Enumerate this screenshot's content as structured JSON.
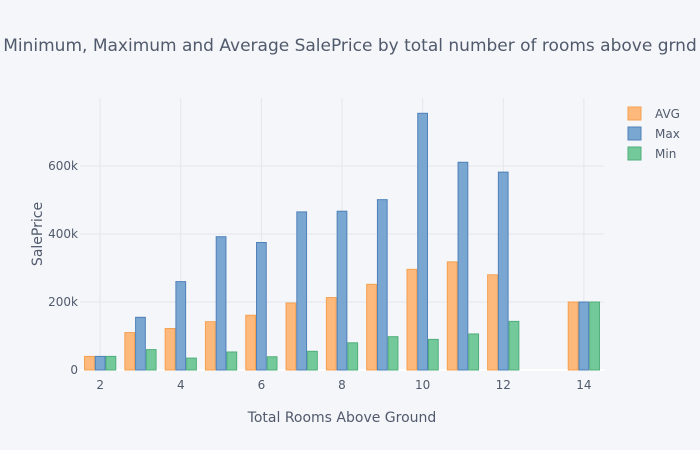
{
  "chart_data": {
    "type": "bar",
    "title": "Minimum, Maximum and Average SalePrice by total number of rooms above grnd",
    "xlabel": "Total Rooms Above Ground",
    "ylabel": "SalePrice",
    "x": [
      2,
      3,
      4,
      5,
      6,
      7,
      8,
      9,
      10,
      11,
      12,
      14
    ],
    "x_ticks": [
      2,
      4,
      6,
      8,
      10,
      12,
      14
    ],
    "xlim": [
      1.5,
      14.5
    ],
    "y_ticks": [
      0,
      200000,
      400000,
      600000
    ],
    "y_tick_labels": [
      "0",
      "200k",
      "400k",
      "600k"
    ],
    "ylim": [
      0,
      800000
    ],
    "grid": true,
    "legend_position": "top-right",
    "series": [
      {
        "name": "AVG",
        "color": "#fdb97c",
        "stroke": "#f5a04f",
        "values": [
          40000,
          110000,
          122000,
          142000,
          161000,
          197000,
          213000,
          252000,
          296000,
          318000,
          280000,
          200000
        ]
      },
      {
        "name": "Max",
        "color": "#7aa6d2",
        "stroke": "#4f81b8",
        "values": [
          40000,
          155000,
          260000,
          392000,
          375000,
          465000,
          467000,
          501000,
          755000,
          611000,
          582000,
          200000
        ]
      },
      {
        "name": "Min",
        "color": "#74c99a",
        "stroke": "#4fae7b",
        "values": [
          40000,
          60000,
          35000,
          53000,
          39000,
          55000,
          80000,
          98000,
          90000,
          106000,
          143000,
          200000
        ]
      }
    ]
  }
}
